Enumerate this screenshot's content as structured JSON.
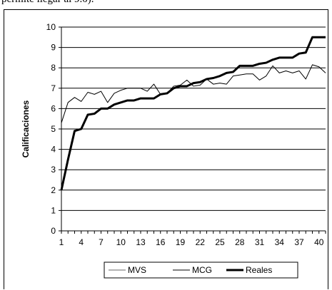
{
  "caption": "permite llegar al 9.0).",
  "chart_data": {
    "type": "line",
    "title": "",
    "xlabel": "",
    "ylabel": "Calificaciones",
    "ylim": [
      0,
      10
    ],
    "yticks": [
      0,
      1,
      2,
      3,
      4,
      5,
      6,
      7,
      8,
      9,
      10
    ],
    "xlim": [
      1,
      41
    ],
    "xticks": [
      1,
      4,
      7,
      10,
      13,
      16,
      19,
      22,
      25,
      28,
      31,
      34,
      37,
      40
    ],
    "grid": "horizontal",
    "legend": "bottom",
    "x": [
      1,
      2,
      3,
      4,
      5,
      6,
      7,
      8,
      9,
      10,
      11,
      12,
      13,
      14,
      15,
      16,
      17,
      18,
      19,
      20,
      21,
      22,
      23,
      24,
      25,
      26,
      27,
      28,
      29,
      30,
      31,
      32,
      33,
      34,
      35,
      36,
      37,
      38,
      39,
      40,
      41
    ],
    "series": [
      {
        "name": "MVS",
        "color": "#999999",
        "width": 1.5,
        "values": [
          2.0,
          3.5,
          4.9,
          5.0,
          5.7,
          5.75,
          6.0,
          6.0,
          6.2,
          6.3,
          6.4,
          6.4,
          6.5,
          6.5,
          6.5,
          6.7,
          6.75,
          7.0,
          7.1,
          7.1,
          7.25,
          7.3,
          7.45,
          7.5,
          7.6,
          7.75,
          7.8,
          8.1,
          8.1,
          8.1,
          8.2,
          8.25,
          8.4,
          8.5,
          8.5,
          8.5,
          8.7,
          8.75,
          9.5,
          9.5,
          9.5
        ]
      },
      {
        "name": "MCG",
        "color": "#000000",
        "width": 1,
        "values": [
          5.3,
          6.3,
          6.55,
          6.35,
          6.8,
          6.7,
          6.85,
          6.3,
          6.75,
          6.9,
          7.0,
          7.0,
          7.0,
          6.85,
          7.2,
          6.7,
          6.75,
          7.1,
          7.15,
          7.4,
          7.1,
          7.15,
          7.45,
          7.2,
          7.25,
          7.2,
          7.6,
          7.65,
          7.7,
          7.7,
          7.4,
          7.6,
          8.1,
          7.75,
          7.85,
          7.75,
          7.85,
          7.45,
          8.15,
          8.05,
          7.75
        ]
      },
      {
        "name": "Reales",
        "color": "#000000",
        "width": 3,
        "values": [
          2.0,
          3.5,
          4.9,
          5.0,
          5.7,
          5.75,
          6.0,
          6.0,
          6.2,
          6.3,
          6.4,
          6.4,
          6.5,
          6.5,
          6.5,
          6.7,
          6.75,
          7.0,
          7.1,
          7.1,
          7.25,
          7.3,
          7.45,
          7.5,
          7.6,
          7.75,
          7.8,
          8.1,
          8.1,
          8.1,
          8.2,
          8.25,
          8.4,
          8.5,
          8.5,
          8.5,
          8.7,
          8.75,
          9.5,
          9.5,
          9.5
        ]
      }
    ]
  }
}
